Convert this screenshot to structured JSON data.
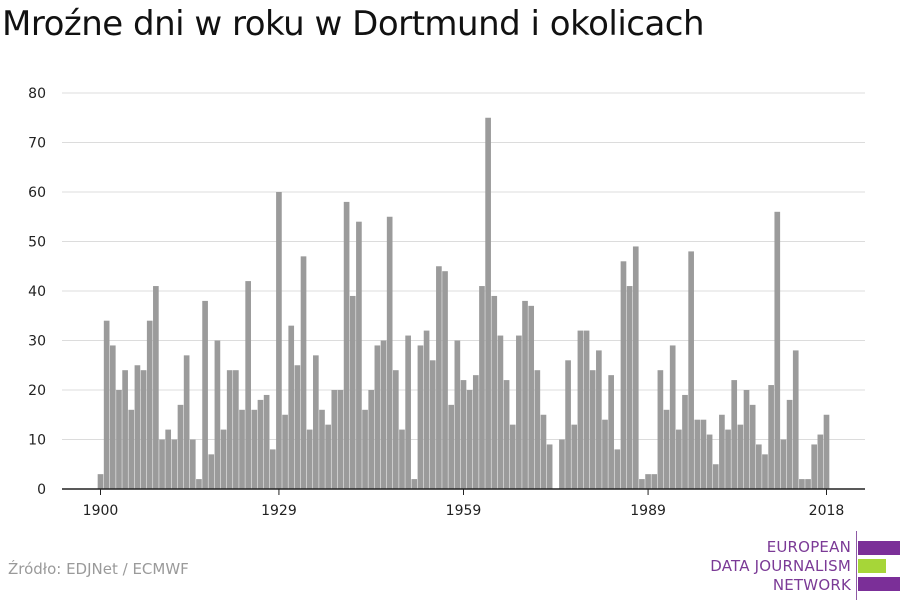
{
  "title": "Mroźne dni w roku w Dortmund i okolicach",
  "source": "Źródło: EDJNet / ECMWF",
  "logo": {
    "lines": [
      "EUROPEAN",
      "DATA JOURNALISM",
      "NETWORK"
    ],
    "bar_colors": [
      "#7b2f98",
      "#a6d638",
      "#7b2f98"
    ]
  },
  "colors": {
    "bar": "#9b9b9b",
    "grid": "#dcdcdc",
    "axis": "#222222",
    "text": "#222222"
  },
  "chart_data": {
    "type": "bar",
    "title": "Mroźne dni w roku w Dortmund i okolicach",
    "xlabel": "",
    "ylabel": "",
    "ylim": [
      0,
      80
    ],
    "yticks": [
      0,
      10,
      20,
      30,
      40,
      50,
      60,
      70,
      80
    ],
    "xtick_labels": [
      1900,
      1929,
      1959,
      1989,
      2018
    ],
    "grid": true,
    "x_start": 1900,
    "x_end": 2018,
    "values": [
      3,
      34,
      29,
      20,
      24,
      16,
      25,
      24,
      34,
      41,
      10,
      12,
      10,
      17,
      27,
      10,
      2,
      38,
      7,
      30,
      12,
      24,
      24,
      16,
      42,
      16,
      18,
      19,
      8,
      60,
      15,
      33,
      25,
      47,
      12,
      27,
      16,
      13,
      20,
      20,
      58,
      39,
      54,
      16,
      20,
      29,
      30,
      55,
      24,
      12,
      31,
      2,
      29,
      32,
      26,
      45,
      44,
      17,
      30,
      22,
      20,
      23,
      41,
      75,
      39,
      31,
      22,
      13,
      31,
      38,
      37,
      24,
      15,
      9,
      0,
      10,
      26,
      13,
      32,
      32,
      24,
      28,
      14,
      23,
      8,
      46,
      41,
      49,
      2,
      3,
      3,
      24,
      16,
      29,
      12,
      19,
      48,
      14,
      14,
      11,
      5,
      15,
      12,
      22,
      13,
      20,
      17,
      9,
      7,
      21,
      56,
      10,
      18,
      28,
      2,
      2,
      9,
      11,
      15
    ]
  }
}
